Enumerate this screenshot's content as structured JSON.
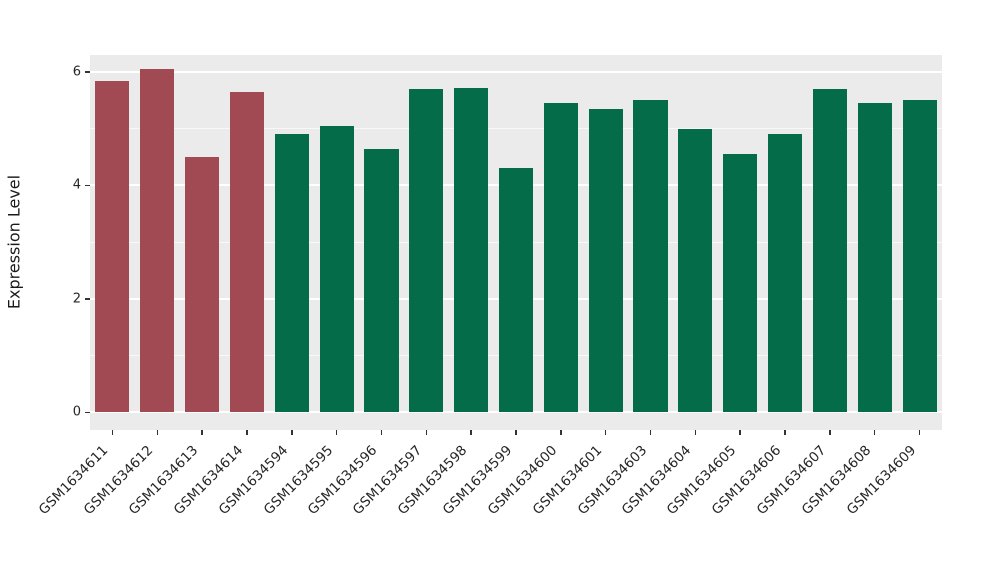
{
  "chart_data": {
    "type": "bar",
    "title": "",
    "xlabel": "",
    "ylabel": "Expression Level",
    "categories": [
      "GSM1634611",
      "GSM1634612",
      "GSM1634613",
      "GSM1634614",
      "GSM1634594",
      "GSM1634595",
      "GSM1634596",
      "GSM1634597",
      "GSM1634598",
      "GSM1634599",
      "GSM1634600",
      "GSM1634601",
      "GSM1634603",
      "GSM1634604",
      "GSM1634605",
      "GSM1634606",
      "GSM1634607",
      "GSM1634608",
      "GSM1634609"
    ],
    "values": [
      5.85,
      6.05,
      4.5,
      5.65,
      4.9,
      5.05,
      4.65,
      5.7,
      5.72,
      4.3,
      5.45,
      5.35,
      5.5,
      5.0,
      4.55,
      4.9,
      5.7,
      5.45,
      5.5
    ],
    "bar_colors": [
      "#A14A53",
      "#A14A53",
      "#A14A53",
      "#A14A53",
      "#046C49",
      "#046C49",
      "#046C49",
      "#046C49",
      "#046C49",
      "#046C49",
      "#046C49",
      "#046C49",
      "#046C49",
      "#046C49",
      "#046C49",
      "#046C49",
      "#046C49",
      "#046C49",
      "#046C49"
    ],
    "group_colors": {
      "first_group": "#A14A53",
      "second_group": "#046C49"
    },
    "yticks": [
      0,
      2,
      4,
      6
    ],
    "minor_yticks": [
      1,
      3,
      5
    ],
    "ylim": [
      -0.31,
      6.3
    ],
    "panel_background": "#EBEBEB",
    "grid_color": "#FFFFFF",
    "bar_width_fraction": 0.76,
    "x_tick_rotation_deg": 45,
    "legend_position": "none",
    "grid": "on"
  }
}
